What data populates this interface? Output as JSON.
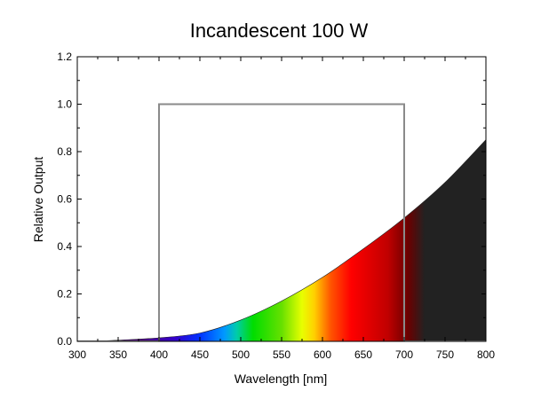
{
  "chart_data": {
    "type": "area",
    "title": "Incandescent 100 W",
    "xlabel": "Wavelength [nm]",
    "ylabel": "Relative Output",
    "xlim": [
      300,
      800
    ],
    "ylim": [
      0,
      1.2
    ],
    "xticks": [
      300,
      350,
      400,
      450,
      500,
      550,
      600,
      650,
      700,
      750,
      800
    ],
    "yticks": [
      0,
      0.2,
      0.4,
      0.6,
      0.8,
      1.0,
      1.2
    ],
    "ytick_labels": [
      "0.0",
      "0.2",
      "0.4",
      "0.6",
      "0.8",
      "1.0",
      "1.2"
    ],
    "grid": false,
    "series": [
      {
        "x": [
          320,
          350,
          400,
          450,
          500,
          550,
          600,
          650,
          700,
          750,
          800
        ],
        "y": [
          0.0,
          0.005,
          0.015,
          0.035,
          0.09,
          0.17,
          0.27,
          0.39,
          0.52,
          0.67,
          0.85
        ],
        "fill": "spectral"
      },
      {
        "x": [
          300,
          400,
          400,
          700,
          700,
          800
        ],
        "y": [
          0,
          0,
          1.0,
          1.0,
          0,
          0
        ],
        "color": "#8a8a8a"
      }
    ]
  }
}
